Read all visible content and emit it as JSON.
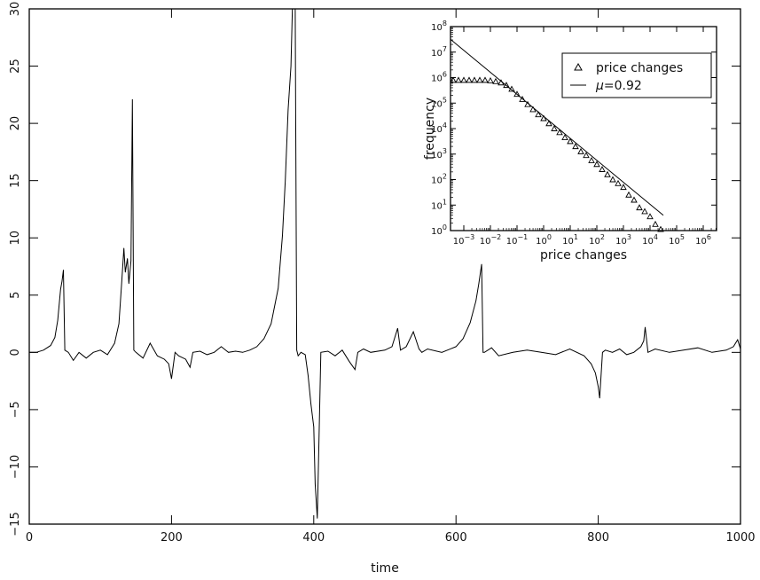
{
  "chart_data": [
    {
      "type": "line",
      "title": "",
      "xlabel": "time",
      "ylabel": "",
      "xlim": [
        0,
        1000
      ],
      "ylim": [
        -15,
        30
      ],
      "xticks": [
        0,
        200,
        400,
        600,
        800,
        1000
      ],
      "yticks": [
        -15,
        -10,
        -5,
        0,
        5,
        10,
        15,
        20,
        25,
        30
      ],
      "grid": false,
      "series": [
        {
          "x": [
            0,
            10,
            20,
            30,
            36,
            40,
            44,
            46,
            48,
            50,
            55,
            62,
            70,
            80,
            90,
            100,
            110,
            120,
            126,
            130,
            133,
            135,
            138,
            140,
            143,
            145,
            147,
            150,
            160,
            170,
            180,
            190,
            196,
            200,
            205,
            210,
            220,
            226,
            230,
            240,
            250,
            260,
            270,
            280,
            290,
            300,
            310,
            320,
            330,
            340,
            350,
            356,
            360,
            364,
            368,
            370,
            374,
            376,
            378,
            382,
            388,
            392,
            396,
            400,
            402,
            405,
            410,
            420,
            430,
            440,
            450,
            458,
            462,
            470,
            480,
            500,
            510,
            518,
            522,
            530,
            540,
            548,
            552,
            560,
            580,
            600,
            610,
            620,
            628,
            632,
            636,
            638,
            640,
            650,
            660,
            680,
            700,
            720,
            740,
            760,
            780,
            790,
            796,
            800,
            802,
            806,
            810,
            820,
            830,
            840,
            850,
            860,
            864,
            866,
            870,
            880,
            900,
            920,
            940,
            960,
            980,
            990,
            996,
            1000
          ],
          "y": [
            0,
            0,
            0.2,
            0.6,
            1.3,
            2.8,
            5.5,
            6.2,
            7.2,
            0.2,
            0,
            -0.7,
            0,
            -0.5,
            0,
            0.2,
            -0.2,
            0.8,
            2.5,
            6.2,
            9.1,
            7.0,
            8.2,
            6.0,
            8.0,
            22.1,
            0.2,
            0,
            -0.5,
            0.8,
            -0.3,
            -0.6,
            -1.0,
            -2.3,
            0,
            -0.3,
            -0.6,
            -1.3,
            0,
            0.1,
            -0.2,
            0,
            0.5,
            0,
            0.1,
            0,
            0.2,
            0.5,
            1.2,
            2.5,
            5.6,
            10.2,
            15.0,
            21.2,
            25.0,
            30.0,
            30.0,
            0.2,
            -0.3,
            0,
            -0.2,
            -2.0,
            -4.5,
            -6.5,
            -11.5,
            -14.5,
            0,
            0.1,
            -0.3,
            0.2,
            -0.8,
            -1.5,
            0,
            0.3,
            0,
            0.2,
            0.5,
            2.1,
            0.2,
            0.5,
            1.8,
            0.3,
            0,
            0.3,
            0,
            0.5,
            1.2,
            2.6,
            4.5,
            6.0,
            7.7,
            0,
            0,
            0.4,
            -0.3,
            0,
            0.2,
            0,
            -0.2,
            0.3,
            -0.3,
            -1.0,
            -1.8,
            -3.0,
            -4.0,
            0,
            0.2,
            0,
            0.3,
            -0.2,
            0,
            0.5,
            1.0,
            2.2,
            0,
            0.3,
            0,
            0.2,
            0.4,
            0,
            0.2,
            0.5,
            1.1,
            0.3
          ]
        }
      ]
    },
    {
      "type": "scatter",
      "title": "",
      "xlabel": "price changes",
      "ylabel": "frequency",
      "xscale": "log",
      "yscale": "log",
      "xlim_exp": [
        -3.5,
        6.5
      ],
      "ylim_exp": [
        0,
        8
      ],
      "xtick_exponents": [
        -3,
        -2,
        -1,
        0,
        1,
        2,
        3,
        4,
        5,
        6
      ],
      "ytick_exponents": [
        0,
        1,
        2,
        3,
        4,
        5,
        6,
        7,
        8
      ],
      "legend_position": "top-right",
      "series": [
        {
          "name": "price changes",
          "marker": "triangle",
          "log10_x": [
            -3.4,
            -3.2,
            -3.0,
            -2.8,
            -2.6,
            -2.4,
            -2.2,
            -2.0,
            -1.8,
            -1.6,
            -1.4,
            -1.2,
            -1.0,
            -0.8,
            -0.6,
            -0.4,
            -0.2,
            0.0,
            0.2,
            0.4,
            0.6,
            0.8,
            1.0,
            1.2,
            1.4,
            1.6,
            1.8,
            2.0,
            2.2,
            2.4,
            2.6,
            2.8,
            3.0,
            3.2,
            3.4,
            3.6,
            3.8,
            4.0,
            4.2,
            4.4
          ],
          "log10_y": [
            5.9,
            5.9,
            5.9,
            5.9,
            5.9,
            5.9,
            5.9,
            5.88,
            5.85,
            5.8,
            5.7,
            5.55,
            5.35,
            5.15,
            4.95,
            4.75,
            4.55,
            4.4,
            4.2,
            4.0,
            3.85,
            3.65,
            3.5,
            3.3,
            3.1,
            2.95,
            2.75,
            2.6,
            2.4,
            2.2,
            2.0,
            1.85,
            1.7,
            1.4,
            1.2,
            0.9,
            0.75,
            0.55,
            0.25,
            0.05
          ]
        },
        {
          "name": "μ=0.92",
          "line_label_prefix": "μ",
          "line_label_suffix": "=0.92",
          "type": "line",
          "log10_x": [
            -3.5,
            4.5
          ],
          "log10_y": [
            7.5,
            0.6
          ]
        }
      ]
    }
  ]
}
